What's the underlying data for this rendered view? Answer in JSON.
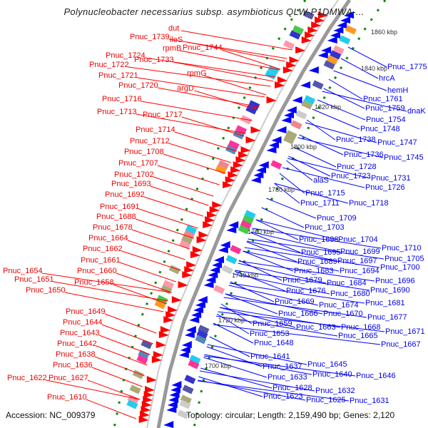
{
  "title": "Polynucleobacter necessarius subsp. asymbioticus QLW-P1DMWA-...",
  "footer": {
    "accession": "Accession: NC_009379",
    "summary": "Topology: circular; Length: 2,159,490 bp; Genes: 2,120"
  },
  "colors": {
    "forward": "#ff0000",
    "reverse": "#0000ff",
    "backbone": "#999999",
    "gc": "#008800"
  },
  "kbp_ticks": [
    "1860 kbp",
    "1840 kbp",
    "1820 kbp",
    "1800 kbp",
    "1780 kbp",
    "1760 kbp",
    "1740 kbp",
    "1720 kbp",
    "1700 kbp"
  ],
  "left_labels": [
    "dut",
    "ileS",
    "Pnuc_1739",
    "Pnuc_1744",
    "rpmB",
    "Pnuc_1724",
    "Pnuc_1733",
    "Pnuc_1722",
    "rpmG",
    "Pnuc_1721",
    "Pnuc_1720",
    "argD",
    "Pnuc_1716",
    "Pnuc_1713",
    "Pnuc_1717",
    "Pnuc_1714",
    "Pnuc_1712",
    "Pnuc_1708",
    "Pnuc_1707",
    "Pnuc_1702",
    "Pnuc_1693",
    "Pnuc_1692",
    "Pnuc_1691",
    "Pnuc_1688",
    "Pnuc_1678",
    "Pnuc_1664",
    "Pnuc_1662",
    "Pnuc_1661",
    "Pnuc_1660",
    "Pnuc_1654",
    "Pnuc_1651",
    "Pnuc_1658",
    "Pnuc_1650",
    "Pnuc_1649",
    "Pnuc_1644",
    "Pnuc_1643",
    "Pnuc_1642",
    "Pnuc_1638",
    "Pnuc_1636",
    "Pnuc_1622",
    "Pnuc_1627",
    "Pnuc_1610"
  ],
  "right_labels": [
    "Pnuc_1775",
    "hrcA",
    "hemH",
    "Pnuc_1761",
    "Pnuc_1759",
    "dnaK",
    "Pnuc_1754",
    "Pnuc_1748",
    "Pnuc_1738",
    "Pnuc_1747",
    "Pnuc_1736",
    "Pnuc_1745",
    "Pnuc_1728",
    "Pnuc_1723",
    "Pnuc_1731",
    "alaS",
    "Pnuc_1726",
    "Pnuc_1715",
    "Pnuc_1711",
    "Pnuc_1718",
    "Pnuc_1709",
    "Pnuc_1703",
    "Pnuc_1698",
    "Pnuc_1704",
    "Pnuc_1710",
    "Pnuc_1695",
    "Pnuc_1699",
    "Pnuc_1705",
    "Pnuc_1689",
    "Pnuc_1697",
    "Pnuc_1700",
    "Pnuc_1683",
    "Pnuc_1694",
    "Pnuc_1696",
    "Pnuc_1679",
    "Pnuc_1684",
    "Pnuc_1690",
    "Pnuc_1676",
    "Pnuc_1680",
    "Pnuc_1681",
    "Pnuc_1669",
    "Pnuc_1674",
    "Pnuc_1677",
    "Pnuc_1666",
    "Pnuc_1670",
    "Pnuc_1671",
    "Pnuc_1659",
    "Pnuc_1663",
    "Pnuc_1668",
    "Pnuc_1665",
    "Pnuc_1653",
    "Pnuc_1667",
    "Pnuc_1648",
    "Pnuc_1641",
    "Pnuc_1645",
    "Pnuc_1637",
    "Pnuc_1640",
    "Pnuc_1646",
    "Pnuc_1633",
    "Pnuc_1628",
    "Pnuc_1632",
    "Pnuc_1623",
    "Pnuc_1625",
    "Pnuc_1631"
  ]
}
